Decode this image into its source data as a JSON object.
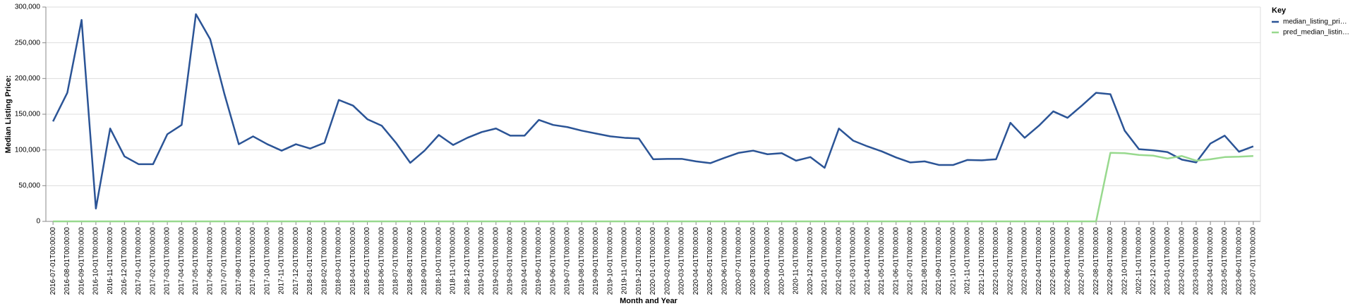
{
  "chart_data": {
    "type": "line",
    "x_label": "Month and Year",
    "y_label": "Median Listing Price:",
    "legend_title": "Key",
    "legend_position": "right",
    "grid": true,
    "ylim": [
      0,
      300000
    ],
    "yticks": [
      0,
      {
        "value": 50000,
        "label": "50,000"
      },
      {
        "value": 100000,
        "label": "100,000"
      },
      {
        "value": 150000,
        "label": "150,000"
      },
      {
        "value": 200000,
        "label": "200,000"
      },
      {
        "value": 250000,
        "label": "250,000"
      },
      {
        "value": 300000,
        "label": "300,000"
      }
    ],
    "categories": [
      "2016-07-01T00:00:00",
      "2016-08-01T00:00:00",
      "2016-09-01T00:00:00",
      "2016-10-01T00:00:00",
      "2016-11-01T00:00:00",
      "2016-12-01T00:00:00",
      "2017-01-01T00:00:00",
      "2017-02-01T00:00:00",
      "2017-03-01T00:00:00",
      "2017-04-01T00:00:00",
      "2017-05-01T00:00:00",
      "2017-06-01T00:00:00",
      "2017-07-01T00:00:00",
      "2017-08-01T00:00:00",
      "2017-09-01T00:00:00",
      "2017-10-01T00:00:00",
      "2017-11-01T00:00:00",
      "2017-12-01T00:00:00",
      "2018-01-01T00:00:00",
      "2018-02-01T00:00:00",
      "2018-03-01T00:00:00",
      "2018-04-01T00:00:00",
      "2018-05-01T00:00:00",
      "2018-06-01T00:00:00",
      "2018-07-01T00:00:00",
      "2018-08-01T00:00:00",
      "2018-09-01T00:00:00",
      "2018-10-01T00:00:00",
      "2018-11-01T00:00:00",
      "2018-12-01T00:00:00",
      "2019-01-01T00:00:00",
      "2019-02-01T00:00:00",
      "2019-03-01T00:00:00",
      "2019-04-01T00:00:00",
      "2019-05-01T00:00:00",
      "2019-06-01T00:00:00",
      "2019-07-01T00:00:00",
      "2019-08-01T00:00:00",
      "2019-09-01T00:00:00",
      "2019-10-01T00:00:00",
      "2019-11-01T00:00:00",
      "2019-12-01T00:00:00",
      "2020-01-01T00:00:00",
      "2020-02-01T00:00:00",
      "2020-03-01T00:00:00",
      "2020-04-01T00:00:00",
      "2020-05-01T00:00:00",
      "2020-06-01T00:00:00",
      "2020-07-01T00:00:00",
      "2020-08-01T00:00:00",
      "2020-09-01T00:00:00",
      "2020-10-01T00:00:00",
      "2020-11-01T00:00:00",
      "2020-12-01T00:00:00",
      "2021-01-01T00:00:00",
      "2021-02-01T00:00:00",
      "2021-03-01T00:00:00",
      "2021-04-01T00:00:00",
      "2021-05-01T00:00:00",
      "2021-06-01T00:00:00",
      "2021-07-01T00:00:00",
      "2021-08-01T00:00:00",
      "2021-09-01T00:00:00",
      "2021-10-01T00:00:00",
      "2021-11-01T00:00:00",
      "2021-12-01T00:00:00",
      "2022-01-01T00:00:00",
      "2022-02-01T00:00:00",
      "2022-03-01T00:00:00",
      "2022-04-01T00:00:00",
      "2022-05-01T00:00:00",
      "2022-06-01T00:00:00",
      "2022-07-01T00:00:00",
      "2022-08-01T00:00:00",
      "2022-09-01T00:00:00",
      "2022-10-01T00:00:00",
      "2022-11-01T00:00:00",
      "2022-12-01T00:00:00",
      "2023-01-01T00:00:00",
      "2023-02-01T00:00:00",
      "2023-03-01T00:00:00",
      "2023-04-01T00:00:00",
      "2023-05-01T00:00:00",
      "2023-06-01T00:00:00",
      "2023-07-01T00:00:00"
    ],
    "series": [
      {
        "name": "median_listing_pri…",
        "color": "#2b5496",
        "values": [
          140000,
          180000,
          282000,
          18000,
          130000,
          91000,
          80000,
          80000,
          122000,
          135000,
          290000,
          255000,
          178000,
          108000,
          119000,
          108000,
          99000,
          108000,
          102000,
          110000,
          170000,
          162000,
          143000,
          134000,
          110000,
          82000,
          99000,
          121000,
          107000,
          117000,
          125000,
          130000,
          120000,
          120000,
          142000,
          135000,
          132000,
          127000,
          123000,
          119000,
          117000,
          116000,
          87000,
          87500,
          87500,
          84000,
          81500,
          89000,
          96000,
          99000,
          94000,
          95500,
          85000,
          90000,
          75000,
          130000,
          113000,
          105000,
          98000,
          89500,
          82500,
          84000,
          79000,
          79000,
          86000,
          85500,
          87000,
          138000,
          117000,
          134000,
          154000,
          145000,
          162000,
          180000,
          178000,
          127000,
          101000,
          99500,
          97000,
          86500,
          82500,
          109000,
          120000,
          97500,
          105000
        ]
      },
      {
        "name": "pred_median_listin…",
        "color": "#98d98e",
        "values": [
          0,
          0,
          0,
          0,
          0,
          0,
          0,
          0,
          0,
          0,
          0,
          0,
          0,
          0,
          0,
          0,
          0,
          0,
          0,
          0,
          0,
          0,
          0,
          0,
          0,
          0,
          0,
          0,
          0,
          0,
          0,
          0,
          0,
          0,
          0,
          0,
          0,
          0,
          0,
          0,
          0,
          0,
          0,
          0,
          0,
          0,
          0,
          0,
          0,
          0,
          0,
          0,
          0,
          0,
          0,
          0,
          0,
          0,
          0,
          0,
          0,
          0,
          0,
          0,
          0,
          0,
          0,
          0,
          0,
          0,
          0,
          0,
          0,
          0,
          96000,
          95500,
          93000,
          92000,
          88000,
          91500,
          85000,
          87000,
          90000,
          90500,
          91500
        ]
      }
    ]
  }
}
